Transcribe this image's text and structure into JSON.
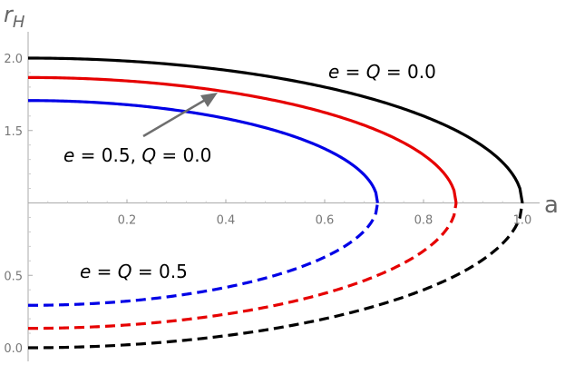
{
  "chart_data": {
    "type": "line",
    "xlabel": "a",
    "ylabel_base": "r",
    "ylabel_sub": "H",
    "xlim": [
      0,
      1.05
    ],
    "ylim": [
      -0.03,
      2.05
    ],
    "x_ticks": [
      {
        "value": 0.2,
        "label": "0.2"
      },
      {
        "value": 0.4,
        "label": "0.4"
      },
      {
        "value": 0.6,
        "label": "0.6"
      },
      {
        "value": 0.8,
        "label": "0.8"
      },
      {
        "value": 1.0,
        "label": "1.0"
      }
    ],
    "y_ticks": [
      {
        "value": 0.0,
        "label": "0.0"
      },
      {
        "value": 0.5,
        "label": "0.5"
      },
      {
        "value": 1.5,
        "label": "1.5"
      },
      {
        "value": 2.0,
        "label": "2.0"
      }
    ],
    "axis_cross_y": 1.0,
    "series": [
      {
        "name": "e = Q = 0.0",
        "color": "#000000",
        "M": 1.0,
        "q2": 0.0
      },
      {
        "name": "e = 0.5, Q = 0.0",
        "color": "#e60000",
        "M": 1.0,
        "q2": 0.25
      },
      {
        "name": "e = Q = 0.5",
        "color": "#0000e6",
        "M": 1.0,
        "q2": 0.5
      }
    ],
    "legend": "none",
    "grid": false,
    "annotations": [
      {
        "id": "black",
        "parts": [
          {
            "t": "e",
            "i": true
          },
          {
            "t": " = ",
            "i": false
          },
          {
            "t": "Q",
            "i": true
          },
          {
            "t": " = 0.0",
            "i": false
          }
        ]
      },
      {
        "id": "red",
        "parts": [
          {
            "t": "e",
            "i": true
          },
          {
            "t": " = 0.5, ",
            "i": false
          },
          {
            "t": "Q",
            "i": true
          },
          {
            "t": " = 0.0",
            "i": false
          }
        ]
      },
      {
        "id": "blue",
        "parts": [
          {
            "t": "e",
            "i": true
          },
          {
            "t": " = ",
            "i": false
          },
          {
            "t": "Q",
            "i": true
          },
          {
            "t": " = 0.5",
            "i": false
          }
        ]
      }
    ]
  }
}
